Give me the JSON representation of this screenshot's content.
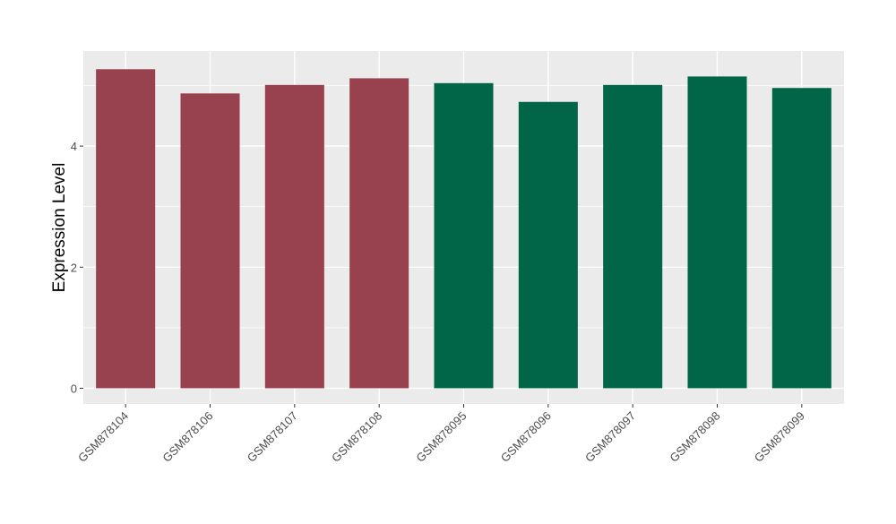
{
  "chart_data": {
    "type": "bar",
    "title": "",
    "xlabel": "",
    "ylabel": "Expression Level",
    "categories": [
      "GSM878104",
      "GSM878106",
      "GSM878107",
      "GSM878108",
      "GSM878095",
      "GSM878096",
      "GSM878097",
      "GSM878098",
      "GSM878099"
    ],
    "values": [
      5.27,
      4.87,
      5.01,
      5.12,
      5.04,
      4.73,
      5.01,
      5.15,
      4.96
    ],
    "bar_colors": [
      "#99424F",
      "#99424F",
      "#99424F",
      "#99424F",
      "#006647",
      "#006647",
      "#006647",
      "#006647",
      "#006647"
    ],
    "ylim": [
      -0.26,
      5.57
    ],
    "yticks": [
      0,
      2,
      4
    ],
    "grid": true,
    "panel_background": "#EBEBEB"
  }
}
